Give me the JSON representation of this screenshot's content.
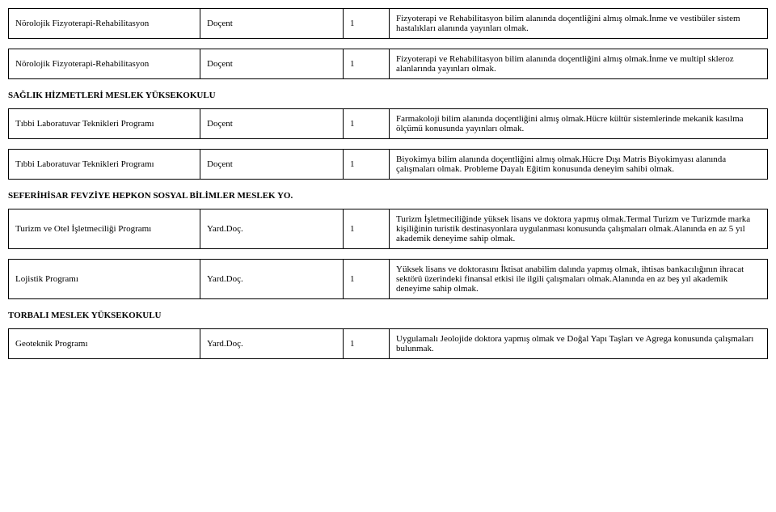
{
  "tables": [
    {
      "section": null,
      "rows": [
        {
          "dept": "Nörolojik Fizyoterapi-Rehabilitasyon",
          "title": "Doçent",
          "count": "1",
          "desc": "Fizyoterapi ve Rehabilitasyon bilim alanında doçentliğini almış olmak.İnme ve vestibüler sistem hastalıkları alanında yayınları olmak."
        }
      ]
    },
    {
      "section": null,
      "rows": [
        {
          "dept": "Nörolojik Fizyoterapi-Rehabilitasyon",
          "title": "Doçent",
          "count": "1",
          "desc": "Fizyoterapi ve Rehabilitasyon bilim alanında doçentliğini almış olmak.İnme ve multipl skleroz alanlarında yayınları olmak."
        }
      ]
    },
    {
      "section": "SAĞLIK HİZMETLERİ MESLEK YÜKSEKOKULU",
      "rows": [
        {
          "dept": "Tıbbi Laboratuvar Teknikleri Programı",
          "title": "Doçent",
          "count": "1",
          "desc": "Farmakoloji bilim alanında doçentliğini almış olmak.Hücre kültür sistemlerinde mekanik kasılma ölçümü konusunda yayınları olmak."
        }
      ]
    },
    {
      "section": null,
      "rows": [
        {
          "dept": "Tıbbi Laboratuvar Teknikleri Programı",
          "title": "Doçent",
          "count": "1",
          "desc": "Biyokimya bilim alanında doçentliğini almış olmak.Hücre Dışı Matris Biyokimyası alanında çalışmaları olmak. Probleme Dayalı Eğitim konusunda  deneyim sahibi olmak."
        }
      ]
    },
    {
      "section": "SEFERİHİSAR FEVZİYE HEPKON SOSYAL BİLİMLER MESLEK YO.",
      "rows": [
        {
          "dept": "Turizm ve Otel İşletmeciliği Programı",
          "title": "Yard.Doç.",
          "count": "1",
          "desc": "Turizm İşletmeciliğinde yüksek lisans ve doktora yapmış olmak.Termal Turizm ve Turizmde marka kişiliğinin turistik destinasyonlara uygulanması konusunda çalışmaları olmak.Alanında en az 5 yıl akademik deneyime sahip olmak."
        }
      ]
    },
    {
      "section": null,
      "rows": [
        {
          "dept": "Lojistik Programı",
          "title": "Yard.Doç.",
          "count": "1",
          "desc": "Yüksek lisans ve doktorasını İktisat anabilim dalında yapmış olmak, ihtisas bankacılığının ihracat sektörü üzerindeki finansal etkisi ile ilgili çalışmaları olmak.Alanında en az beş yıl akademik deneyime sahip olmak."
        }
      ]
    },
    {
      "section": "TORBALI MESLEK YÜKSEKOKULU",
      "rows": [
        {
          "dept": "Geoteknik Programı",
          "title": "Yard.Doç.",
          "count": "1",
          "desc": "Uygulamalı Jeolojide doktora yapmış olmak ve Doğal Yapı Taşları ve Agrega konusunda çalışmaları bulunmak."
        }
      ]
    }
  ]
}
